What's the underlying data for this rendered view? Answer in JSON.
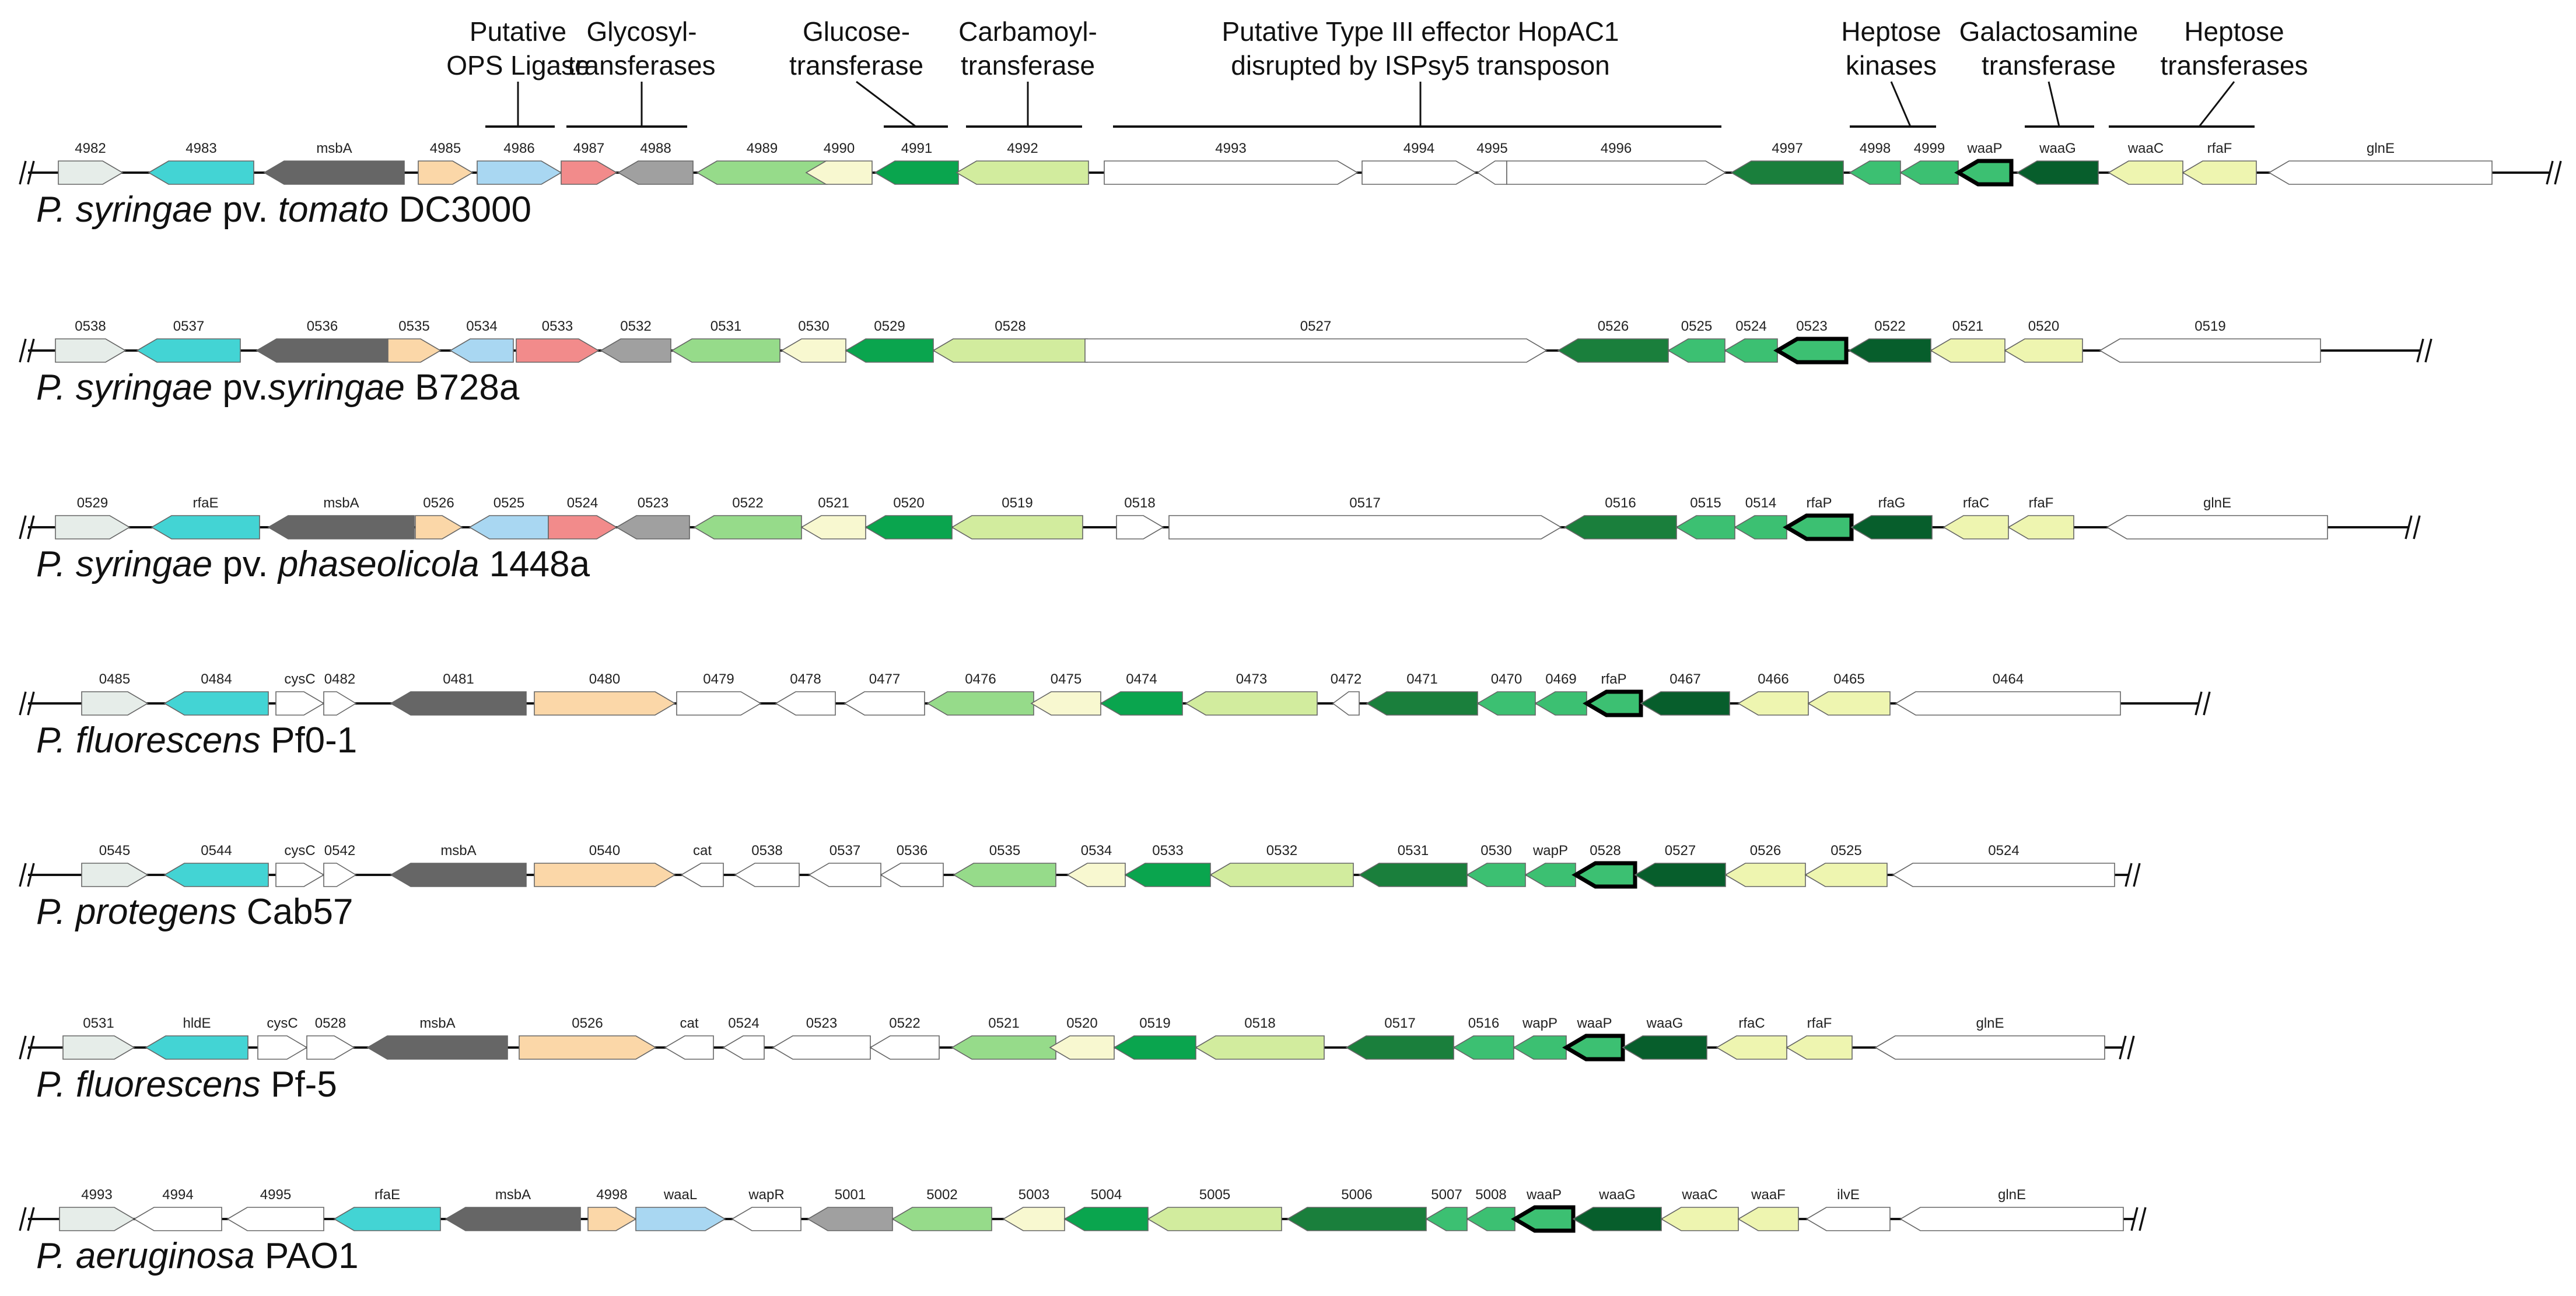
{
  "colors": {
    "o": "#e6ede9",
    "c": "#43d4d4",
    "d": "#666666",
    "p": "#fbd7a8",
    "b": "#a9d7f2",
    "r": "#f28b8b",
    "g": "#a0a0a0",
    "lg": "#96db8a",
    "y": "#f8f8d0",
    "mg": "#0aa54e",
    "yg": "#d2ec9e",
    "w": "#ffffff",
    "dg": "#1a7f3c",
    "sg": "#3cc072",
    "dkg": "#075e2c",
    "ly": "#eef5b0"
  },
  "annotations": [
    {
      "lines": [
        "Putative",
        "OPS Ligase"
      ]
    },
    {
      "lines": [
        "Glycosyl-",
        "transferases"
      ]
    },
    {
      "lines": [
        "Glucose-",
        "transferase"
      ]
    },
    {
      "lines": [
        "Carbamoyl-",
        "transferase"
      ]
    },
    {
      "lines": [
        "Putative Type III effector HopAC1",
        "disrupted by ISPsy5 transposon"
      ]
    },
    {
      "lines": [
        "Heptose",
        "kinases"
      ]
    },
    {
      "lines": [
        "Galactosamine",
        "transferase"
      ]
    },
    {
      "lines": [
        "Heptose",
        "transferases"
      ]
    }
  ],
  "tracks": [
    {
      "strain": [
        "P. syringae",
        " pv. ",
        "tomato",
        " DC3000"
      ],
      "genes": [
        {
          "n": "4982",
          "c": "o",
          "d": "R"
        },
        {
          "n": "4983",
          "c": "c",
          "d": "L"
        },
        {
          "n": "msbA",
          "c": "d",
          "d": "L"
        },
        {
          "n": "4985",
          "c": "p",
          "d": "R"
        },
        {
          "n": "4986",
          "c": "b",
          "d": "R"
        },
        {
          "n": "4987",
          "c": "r",
          "d": "R"
        },
        {
          "n": "4988",
          "c": "g",
          "d": "L"
        },
        {
          "n": "4989",
          "c": "lg",
          "d": "L"
        },
        {
          "n": "4990",
          "c": "y",
          "d": "L"
        },
        {
          "n": "4991",
          "c": "mg",
          "d": "L"
        },
        {
          "n": "4992",
          "c": "yg",
          "d": "L"
        },
        {
          "n": "4993",
          "c": "w",
          "d": "R"
        },
        {
          "n": "4994",
          "c": "w",
          "d": "R"
        },
        {
          "n": "4995",
          "c": "w",
          "d": "L"
        },
        {
          "n": "4996",
          "c": "w",
          "d": "R"
        },
        {
          "n": "4997",
          "c": "dg",
          "d": "L"
        },
        {
          "n": "4998",
          "c": "sg",
          "d": "L"
        },
        {
          "n": "4999",
          "c": "sg",
          "d": "L"
        },
        {
          "n": "waaP",
          "c": "sg",
          "d": "L",
          "bold": true
        },
        {
          "n": "waaG",
          "c": "dkg",
          "d": "L"
        },
        {
          "n": "waaC",
          "c": "ly",
          "d": "L"
        },
        {
          "n": "rfaF",
          "c": "ly",
          "d": "L"
        },
        {
          "n": "glnE",
          "c": "w",
          "d": "L"
        }
      ]
    },
    {
      "strain": [
        "P. syringae",
        " pv.",
        "syringae",
        " B728a"
      ],
      "genes": [
        {
          "n": "0538",
          "c": "o",
          "d": "R"
        },
        {
          "n": "0537",
          "c": "c",
          "d": "L"
        },
        {
          "n": "0536",
          "c": "d",
          "d": "L"
        },
        {
          "n": "0535",
          "c": "p",
          "d": "R"
        },
        {
          "n": "0534",
          "c": "b",
          "d": "L"
        },
        {
          "n": "0533",
          "c": "r",
          "d": "R"
        },
        {
          "n": "0532",
          "c": "g",
          "d": "L"
        },
        {
          "n": "0531",
          "c": "lg",
          "d": "L"
        },
        {
          "n": "0530",
          "c": "y",
          "d": "L"
        },
        {
          "n": "0529",
          "c": "mg",
          "d": "L"
        },
        {
          "n": "0528",
          "c": "yg",
          "d": "L"
        },
        {
          "n": "0527",
          "c": "w",
          "d": "R"
        },
        {
          "n": "0526",
          "c": "dg",
          "d": "L"
        },
        {
          "n": "0525",
          "c": "sg",
          "d": "L"
        },
        {
          "n": "0524",
          "c": "sg",
          "d": "L"
        },
        {
          "n": "0523",
          "c": "sg",
          "d": "L",
          "bold": true
        },
        {
          "n": "0522",
          "c": "dkg",
          "d": "L"
        },
        {
          "n": "0521",
          "c": "ly",
          "d": "L"
        },
        {
          "n": "0520",
          "c": "ly",
          "d": "L"
        },
        {
          "n": "0519",
          "c": "w",
          "d": "L"
        }
      ]
    },
    {
      "strain": [
        "P. syringae",
        " pv. ",
        "phaseolicola",
        " 1448a"
      ],
      "genes": [
        {
          "n": "0529",
          "c": "o",
          "d": "R"
        },
        {
          "n": "rfaE",
          "c": "c",
          "d": "L"
        },
        {
          "n": "msbA",
          "c": "d",
          "d": "L"
        },
        {
          "n": "0526",
          "c": "p",
          "d": "R"
        },
        {
          "n": "0525",
          "c": "b",
          "d": "L"
        },
        {
          "n": "0524",
          "c": "r",
          "d": "R"
        },
        {
          "n": "0523",
          "c": "g",
          "d": "L"
        },
        {
          "n": "0522",
          "c": "lg",
          "d": "L"
        },
        {
          "n": "0521",
          "c": "y",
          "d": "L"
        },
        {
          "n": "0520",
          "c": "mg",
          "d": "L"
        },
        {
          "n": "0519",
          "c": "yg",
          "d": "L"
        },
        {
          "n": "0518",
          "c": "w",
          "d": "R"
        },
        {
          "n": "0517",
          "c": "w",
          "d": "R"
        },
        {
          "n": "0516",
          "c": "dg",
          "d": "L"
        },
        {
          "n": "0515",
          "c": "sg",
          "d": "L"
        },
        {
          "n": "0514",
          "c": "sg",
          "d": "L"
        },
        {
          "n": "rfaP",
          "c": "sg",
          "d": "L",
          "bold": true
        },
        {
          "n": "rfaG",
          "c": "dkg",
          "d": "L"
        },
        {
          "n": "rfaC",
          "c": "ly",
          "d": "L"
        },
        {
          "n": "rfaF",
          "c": "ly",
          "d": "L"
        },
        {
          "n": "glnE",
          "c": "w",
          "d": "L"
        }
      ]
    },
    {
      "strain": [
        "P. fluorescens",
        " Pf0-1"
      ],
      "genes": [
        {
          "n": "0485",
          "c": "o",
          "d": "R"
        },
        {
          "n": "0484",
          "c": "c",
          "d": "L"
        },
        {
          "n": "cysC",
          "c": "w",
          "d": "R"
        },
        {
          "n": "0482",
          "c": "w",
          "d": "R"
        },
        {
          "n": "0481",
          "c": "d",
          "d": "L"
        },
        {
          "n": "0480",
          "c": "p",
          "d": "R"
        },
        {
          "n": "0479",
          "c": "w",
          "d": "R"
        },
        {
          "n": "0478",
          "c": "w",
          "d": "L"
        },
        {
          "n": "0477",
          "c": "w",
          "d": "L"
        },
        {
          "n": "0476",
          "c": "lg",
          "d": "L"
        },
        {
          "n": "0475",
          "c": "y",
          "d": "L"
        },
        {
          "n": "0474",
          "c": "mg",
          "d": "L"
        },
        {
          "n": "0473",
          "c": "yg",
          "d": "L"
        },
        {
          "n": "0472",
          "c": "w",
          "d": "L"
        },
        {
          "n": "0471",
          "c": "dg",
          "d": "L"
        },
        {
          "n": "0470",
          "c": "sg",
          "d": "L"
        },
        {
          "n": "0469",
          "c": "sg",
          "d": "L"
        },
        {
          "n": "rfaP",
          "c": "sg",
          "d": "L",
          "bold": true
        },
        {
          "n": "0467",
          "c": "dkg",
          "d": "L"
        },
        {
          "n": "0466",
          "c": "ly",
          "d": "L"
        },
        {
          "n": "0465",
          "c": "ly",
          "d": "L"
        },
        {
          "n": "0464",
          "c": "w",
          "d": "L"
        }
      ]
    },
    {
      "strain": [
        "P. protegens",
        " Cab57"
      ],
      "genes": [
        {
          "n": "0545",
          "c": "o",
          "d": "R"
        },
        {
          "n": "0544",
          "c": "c",
          "d": "L"
        },
        {
          "n": "cysC",
          "c": "w",
          "d": "R"
        },
        {
          "n": "0542",
          "c": "w",
          "d": "R"
        },
        {
          "n": "msbA",
          "c": "d",
          "d": "L"
        },
        {
          "n": "0540",
          "c": "p",
          "d": "R"
        },
        {
          "n": "cat",
          "c": "w",
          "d": "L"
        },
        {
          "n": "0538",
          "c": "w",
          "d": "L"
        },
        {
          "n": "0537",
          "c": "w",
          "d": "L"
        },
        {
          "n": "0536",
          "c": "w",
          "d": "L"
        },
        {
          "n": "0535",
          "c": "lg",
          "d": "L"
        },
        {
          "n": "0534",
          "c": "y",
          "d": "L"
        },
        {
          "n": "0533",
          "c": "mg",
          "d": "L"
        },
        {
          "n": "0532",
          "c": "yg",
          "d": "L"
        },
        {
          "n": "0531",
          "c": "dg",
          "d": "L"
        },
        {
          "n": "0530",
          "c": "sg",
          "d": "L"
        },
        {
          "n": "wapP",
          "c": "sg",
          "d": "L"
        },
        {
          "n": "0528",
          "c": "sg",
          "d": "L",
          "bold": true
        },
        {
          "n": "0527",
          "c": "dkg",
          "d": "L"
        },
        {
          "n": "0526",
          "c": "ly",
          "d": "L"
        },
        {
          "n": "0525",
          "c": "ly",
          "d": "L"
        },
        {
          "n": "0524",
          "c": "w",
          "d": "L"
        }
      ]
    },
    {
      "strain": [
        "P. fluorescens",
        " Pf-5"
      ],
      "genes": [
        {
          "n": "0531",
          "c": "o",
          "d": "R"
        },
        {
          "n": "hldE",
          "c": "c",
          "d": "L"
        },
        {
          "n": "cysC",
          "c": "w",
          "d": "R"
        },
        {
          "n": "0528",
          "c": "w",
          "d": "R"
        },
        {
          "n": "msbA",
          "c": "d",
          "d": "L"
        },
        {
          "n": "0526",
          "c": "p",
          "d": "R"
        },
        {
          "n": "cat",
          "c": "w",
          "d": "L"
        },
        {
          "n": "0524",
          "c": "w",
          "d": "L"
        },
        {
          "n": "0523",
          "c": "w",
          "d": "L"
        },
        {
          "n": "0522",
          "c": "w",
          "d": "L"
        },
        {
          "n": "0521",
          "c": "lg",
          "d": "L"
        },
        {
          "n": "0520",
          "c": "y",
          "d": "L"
        },
        {
          "n": "0519",
          "c": "mg",
          "d": "L"
        },
        {
          "n": "0518",
          "c": "yg",
          "d": "L"
        },
        {
          "n": "0517",
          "c": "dg",
          "d": "L"
        },
        {
          "n": "0516",
          "c": "sg",
          "d": "L"
        },
        {
          "n": "wapP",
          "c": "sg",
          "d": "L"
        },
        {
          "n": "waaP",
          "c": "sg",
          "d": "L",
          "bold": true
        },
        {
          "n": "waaG",
          "c": "dkg",
          "d": "L"
        },
        {
          "n": "rfaC",
          "c": "ly",
          "d": "L"
        },
        {
          "n": "rfaF",
          "c": "ly",
          "d": "L"
        },
        {
          "n": "glnE",
          "c": "w",
          "d": "L"
        }
      ]
    },
    {
      "strain": [
        "P. aeruginosa",
        " PAO1"
      ],
      "genes": [
        {
          "n": "4993",
          "c": "o",
          "d": "R"
        },
        {
          "n": "4994",
          "c": "w",
          "d": "L"
        },
        {
          "n": "4995",
          "c": "w",
          "d": "L"
        },
        {
          "n": "rfaE",
          "c": "c",
          "d": "L"
        },
        {
          "n": "msbA",
          "c": "d",
          "d": "L"
        },
        {
          "n": "4998",
          "c": "p",
          "d": "R"
        },
        {
          "n": "waaL",
          "c": "b",
          "d": "R"
        },
        {
          "n": "wapR",
          "c": "w",
          "d": "L"
        },
        {
          "n": "5001",
          "c": "g",
          "d": "L"
        },
        {
          "n": "5002",
          "c": "lg",
          "d": "L"
        },
        {
          "n": "5003",
          "c": "y",
          "d": "L"
        },
        {
          "n": "5004",
          "c": "mg",
          "d": "L"
        },
        {
          "n": "5005",
          "c": "yg",
          "d": "L"
        },
        {
          "n": "5006",
          "c": "dg",
          "d": "L"
        },
        {
          "n": "5007",
          "c": "sg",
          "d": "L"
        },
        {
          "n": "5008",
          "c": "sg",
          "d": "L"
        },
        {
          "n": "waaP",
          "c": "sg",
          "d": "L",
          "bold": true
        },
        {
          "n": "waaG",
          "c": "dkg",
          "d": "L"
        },
        {
          "n": "waaC",
          "c": "ly",
          "d": "L"
        },
        {
          "n": "waaF",
          "c": "ly",
          "d": "L"
        },
        {
          "n": "ilvE",
          "c": "w",
          "d": "L"
        },
        {
          "n": "glnE",
          "c": "w",
          "d": "L"
        }
      ]
    }
  ]
}
